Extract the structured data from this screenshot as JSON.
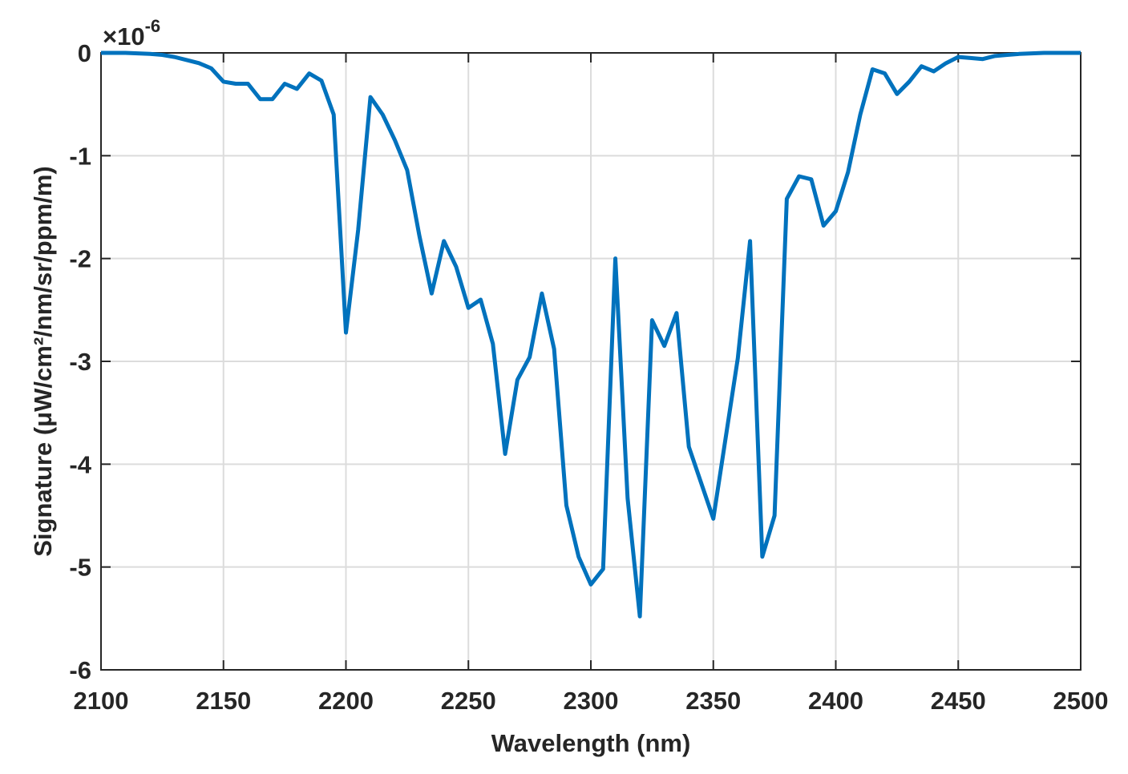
{
  "chart_data": {
    "type": "line",
    "xlabel": "Wavelength (nm)",
    "ylabel": "Signature (μW/cm²/nm/sr/ppm/m)",
    "y_multiplier": {
      "base": "×10",
      "exponent": "-6"
    },
    "x": [
      2100,
      2105,
      2110,
      2115,
      2120,
      2125,
      2130,
      2135,
      2140,
      2145,
      2150,
      2155,
      2160,
      2165,
      2170,
      2175,
      2180,
      2185,
      2190,
      2195,
      2200,
      2205,
      2210,
      2215,
      2220,
      2225,
      2230,
      2235,
      2240,
      2245,
      2250,
      2255,
      2260,
      2265,
      2270,
      2275,
      2280,
      2285,
      2290,
      2295,
      2300,
      2305,
      2310,
      2315,
      2320,
      2325,
      2330,
      2335,
      2340,
      2345,
      2350,
      2355,
      2360,
      2365,
      2370,
      2375,
      2380,
      2385,
      2390,
      2395,
      2400,
      2405,
      2410,
      2415,
      2420,
      2425,
      2430,
      2435,
      2440,
      2445,
      2450,
      2455,
      2460,
      2465,
      2470,
      2475,
      2480,
      2485,
      2490,
      2495,
      2500
    ],
    "values": [
      0,
      0,
      0,
      -0.005,
      -0.01,
      -0.02,
      -0.04,
      -0.07,
      -0.1,
      -0.15,
      -0.28,
      -0.3,
      -0.3,
      -0.45,
      -0.45,
      -0.3,
      -0.35,
      -0.2,
      -0.27,
      -0.6,
      -2.72,
      -1.72,
      -0.43,
      -0.6,
      -0.85,
      -1.14,
      -1.78,
      -2.34,
      -1.83,
      -2.08,
      -2.48,
      -2.4,
      -2.83,
      -3.9,
      -3.18,
      -2.96,
      -2.34,
      -2.88,
      -4.4,
      -4.9,
      -5.17,
      -5.02,
      -2.0,
      -4.33,
      -5.48,
      -2.6,
      -2.85,
      -2.53,
      -3.83,
      -4.18,
      -4.53,
      -3.75,
      -2.97,
      -1.83,
      -4.9,
      -4.5,
      -1.42,
      -1.2,
      -1.23,
      -1.68,
      -1.54,
      -1.16,
      -0.6,
      -0.16,
      -0.2,
      -0.4,
      -0.28,
      -0.13,
      -0.18,
      -0.1,
      -0.04,
      -0.05,
      -0.06,
      -0.03,
      -0.02,
      -0.01,
      -0.005,
      0,
      0,
      0,
      0
    ],
    "color": "#0072BD",
    "xlim": [
      2100,
      2500
    ],
    "xticks": [
      2100,
      2150,
      2200,
      2250,
      2300,
      2350,
      2400,
      2450,
      2500
    ],
    "ylim": [
      -6,
      0
    ],
    "yticks": [
      -6,
      -5,
      -4,
      -3,
      -2,
      -1,
      0
    ],
    "grid": true
  }
}
